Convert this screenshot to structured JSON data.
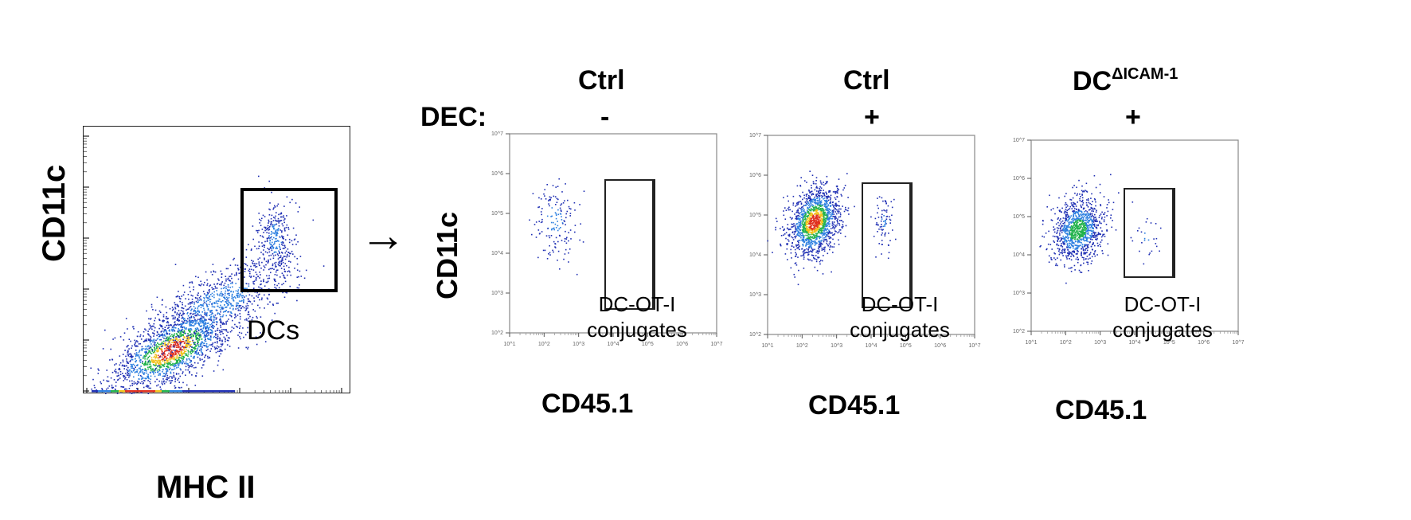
{
  "overview_panel": {
    "x_label": "MHC II",
    "y_label": "CD11c",
    "gate_label": "DCs"
  },
  "arrow": "→",
  "dec_label": "DEC:",
  "columns": [
    {
      "condition": "Ctrl",
      "condition_sup": "",
      "dec": "-",
      "x_label": "CD45.1",
      "gate_label_line1": "DC-OT-I",
      "gate_label_line2": "conjugates"
    },
    {
      "condition": "Ctrl",
      "condition_sup": "",
      "dec": "+",
      "x_label": "CD45.1",
      "gate_label_line1": "DC-OT-I",
      "gate_label_line2": "conjugates"
    },
    {
      "condition": "DC",
      "condition_sup": "ΔICAM-1",
      "dec": "+",
      "x_label": "CD45.1",
      "gate_label_line1": "DC-OT-I",
      "gate_label_line2": "conjugates"
    }
  ],
  "conjugate_y_label": "CD11c",
  "chart_data": [
    {
      "type": "scatter",
      "xlabel": "MHC II",
      "ylabel": "CD11c",
      "gate": "DCs",
      "density_colors": [
        "#1f2fb3",
        "#2c7fe0",
        "#22b24c",
        "#f2c21b",
        "#e0301e"
      ]
    },
    {
      "type": "scatter",
      "title": "Ctrl",
      "subtitle": "DEC: -",
      "xlabel": "CD45.1",
      "ylabel": "CD11c",
      "x_ticks": [
        "10^1",
        "10^2",
        "10^3",
        "10^4",
        "10^5",
        "10^6",
        "10^7"
      ],
      "y_ticks": [
        "10^2",
        "10^3",
        "10^4",
        "10^5",
        "10^6",
        "10^7"
      ],
      "gate": "DC-OT-I conjugates"
    },
    {
      "type": "scatter",
      "title": "Ctrl",
      "subtitle": "DEC: +",
      "xlabel": "CD45.1",
      "ylabel": "CD11c",
      "x_ticks": [
        "10^1",
        "10^2",
        "10^3",
        "10^4",
        "10^5",
        "10^6",
        "10^7"
      ],
      "y_ticks": [
        "10^2",
        "10^3",
        "10^4",
        "10^5",
        "10^6",
        "10^7"
      ],
      "gate": "DC-OT-I conjugates"
    },
    {
      "type": "scatter",
      "title": "DCΔICAM-1",
      "subtitle": "DEC: +",
      "xlabel": "CD45.1",
      "ylabel": "CD11c",
      "x_ticks": [
        "10^1",
        "10^2",
        "10^3",
        "10^4",
        "10^5",
        "10^6",
        "10^7"
      ],
      "y_ticks": [
        "10^2",
        "10^3",
        "10^4",
        "10^5",
        "10^6",
        "10^7"
      ],
      "gate": "DC-OT-I conjugates"
    }
  ]
}
